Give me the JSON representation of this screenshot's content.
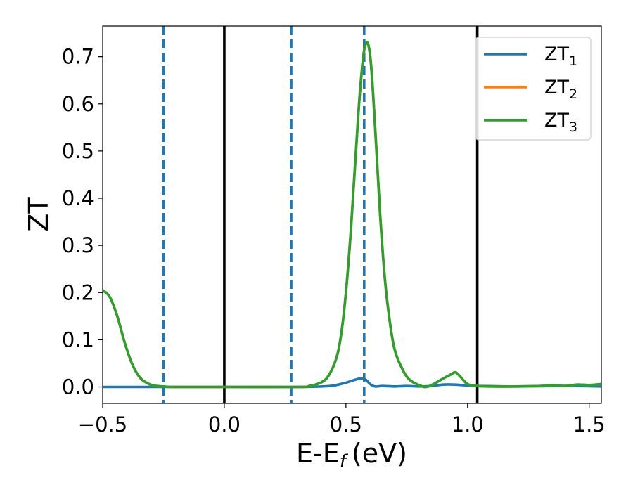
{
  "chart_data": {
    "type": "line",
    "xlabel": "E-E",
    "xlabel_subscript": "f",
    "xlabel_unit": "(eV)",
    "ylabel": "ZT",
    "xlim": [
      -0.5,
      1.55
    ],
    "ylim": [
      -0.035,
      0.765
    ],
    "xticks": [
      -0.5,
      0.0,
      0.5,
      1.0,
      1.5
    ],
    "xtick_labels": [
      "−0.5",
      "0.0",
      "0.5",
      "1.0",
      "1.5"
    ],
    "yticks": [
      0.0,
      0.1,
      0.2,
      0.3,
      0.4,
      0.5,
      0.6,
      0.7
    ],
    "ytick_labels": [
      "0.0",
      "0.1",
      "0.2",
      "0.3",
      "0.4",
      "0.5",
      "0.6",
      "0.7"
    ],
    "grid": false,
    "legend_position": "top-right",
    "vlines_solid": [
      0.0,
      1.04
    ],
    "vlines_dashed": [
      -0.25,
      0.275,
      0.575
    ],
    "series": [
      {
        "name": "ZT",
        "subscript": "1",
        "color": "#1f77b4",
        "x": [
          -0.5,
          -0.4,
          -0.3,
          -0.2,
          0.0,
          0.3,
          0.4,
          0.45,
          0.5,
          0.53,
          0.56,
          0.58,
          0.6,
          0.62,
          0.65,
          0.7,
          0.75,
          0.8,
          0.85,
          0.9,
          0.95,
          1.0,
          1.05,
          1.2,
          1.35,
          1.45,
          1.55
        ],
        "y": [
          0.0,
          0.0,
          0.0,
          0.0,
          0.0,
          0.0,
          0.001,
          0.003,
          0.009,
          0.014,
          0.018,
          0.016,
          0.006,
          0.001,
          0.002,
          0.001,
          0.002,
          0.001,
          0.002,
          0.005,
          0.005,
          0.003,
          0.002,
          0.001,
          0.002,
          0.002,
          0.001
        ]
      },
      {
        "name": "ZT",
        "subscript": "2",
        "color": "#ff7f0e",
        "x": [
          -0.5,
          -0.47,
          -0.44,
          -0.41,
          -0.38,
          -0.35,
          -0.32,
          -0.29,
          -0.25,
          -0.2,
          0.0,
          0.3,
          0.35,
          0.4,
          0.43,
          0.46,
          0.48,
          0.5,
          0.52,
          0.54,
          0.56,
          0.58,
          0.6,
          0.62,
          0.64,
          0.66,
          0.68,
          0.7,
          0.73,
          0.76,
          0.8,
          0.83,
          0.86,
          0.9,
          0.93,
          0.95,
          0.97,
          1.0,
          1.04,
          1.1,
          1.2,
          1.3,
          1.35,
          1.4,
          1.45,
          1.5,
          1.55
        ],
        "y": [
          0.205,
          0.19,
          0.15,
          0.095,
          0.05,
          0.022,
          0.009,
          0.003,
          0.001,
          0.0,
          0.0,
          0.0,
          0.002,
          0.01,
          0.025,
          0.06,
          0.11,
          0.2,
          0.33,
          0.49,
          0.64,
          0.725,
          0.7,
          0.55,
          0.37,
          0.23,
          0.14,
          0.08,
          0.04,
          0.016,
          0.004,
          0.0,
          0.006,
          0.018,
          0.026,
          0.031,
          0.022,
          0.006,
          0.002,
          0.001,
          0.001,
          0.002,
          0.004,
          0.002,
          0.005,
          0.004,
          0.006
        ]
      },
      {
        "name": "ZT",
        "subscript": "3",
        "color": "#2ca02c",
        "x": [
          -0.5,
          -0.47,
          -0.44,
          -0.41,
          -0.38,
          -0.35,
          -0.32,
          -0.29,
          -0.25,
          -0.2,
          0.0,
          0.3,
          0.35,
          0.4,
          0.43,
          0.46,
          0.48,
          0.5,
          0.52,
          0.54,
          0.56,
          0.58,
          0.6,
          0.62,
          0.64,
          0.66,
          0.68,
          0.7,
          0.73,
          0.76,
          0.8,
          0.83,
          0.86,
          0.9,
          0.93,
          0.95,
          0.97,
          1.0,
          1.04,
          1.1,
          1.2,
          1.3,
          1.35,
          1.4,
          1.45,
          1.5,
          1.55
        ],
        "y": [
          0.205,
          0.19,
          0.15,
          0.095,
          0.05,
          0.022,
          0.009,
          0.003,
          0.001,
          0.0,
          0.0,
          0.0,
          0.002,
          0.01,
          0.025,
          0.06,
          0.11,
          0.2,
          0.33,
          0.49,
          0.64,
          0.725,
          0.7,
          0.55,
          0.37,
          0.23,
          0.14,
          0.08,
          0.04,
          0.016,
          0.004,
          0.0,
          0.006,
          0.018,
          0.026,
          0.031,
          0.022,
          0.006,
          0.002,
          0.001,
          0.001,
          0.002,
          0.004,
          0.002,
          0.005,
          0.004,
          0.006
        ]
      }
    ]
  }
}
